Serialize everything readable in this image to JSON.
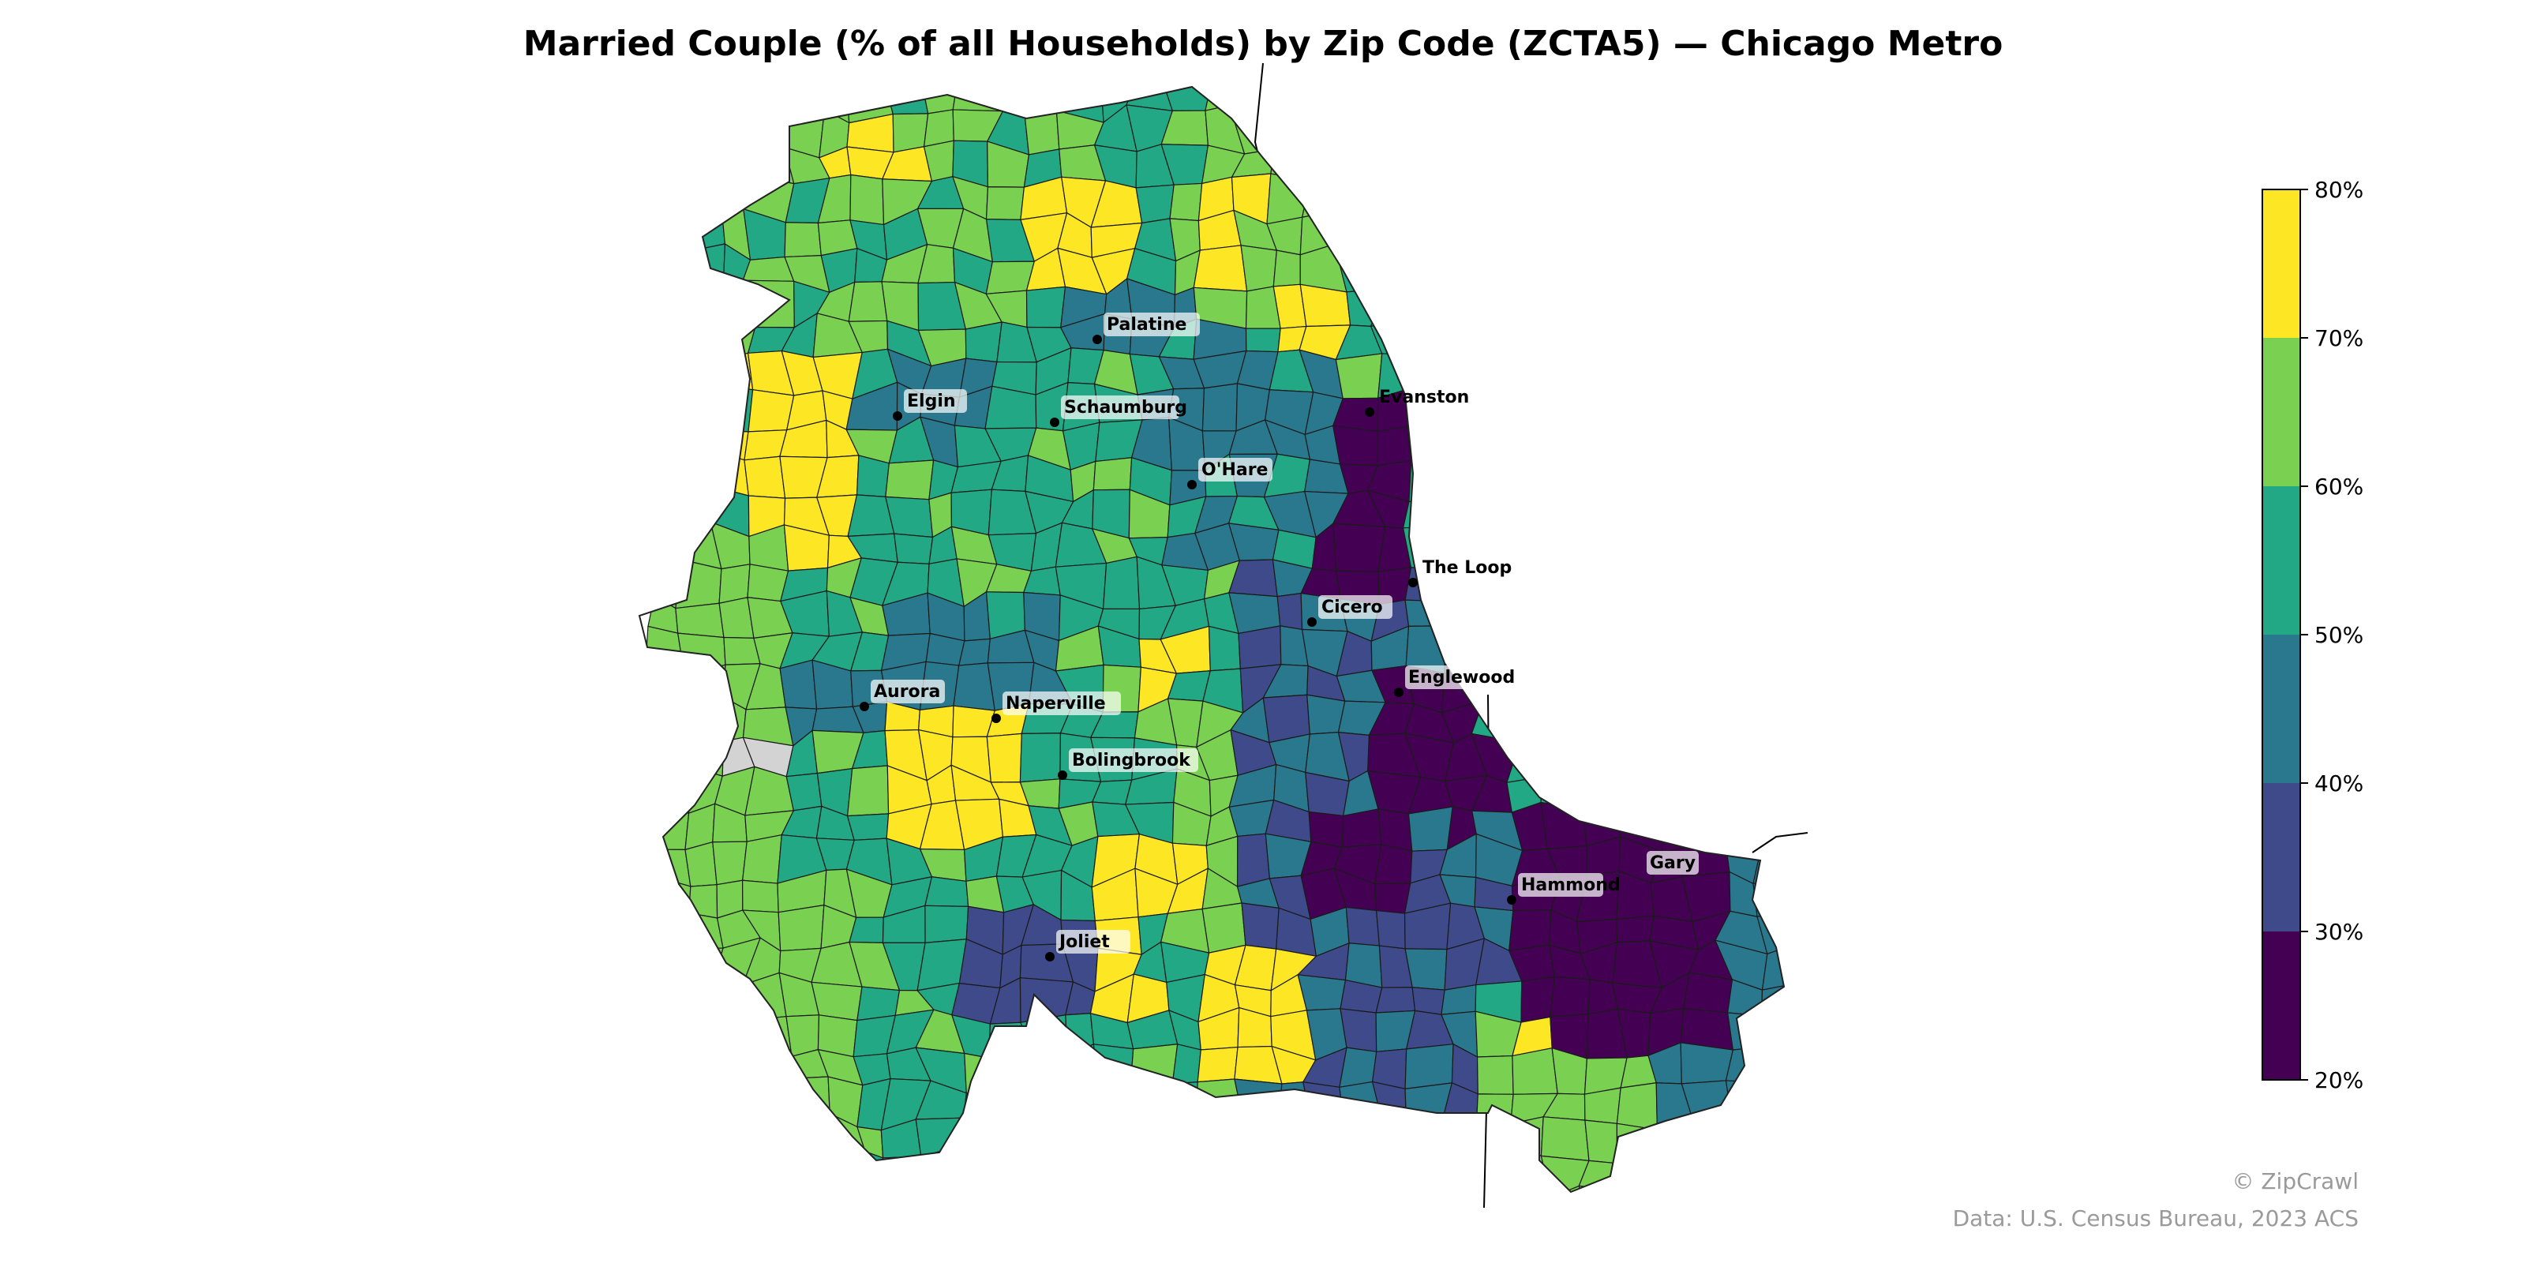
{
  "title": "Married Couple (% of all Households) by Zip Code (ZCTA5) — Chicago Metro",
  "colors": {
    "bin_20_30": "#440154",
    "bin_30_40": "#3e4a89",
    "bin_40_50": "#2a788e",
    "bin_50_60": "#22a884",
    "bin_60_70": "#7ad151",
    "bin_70_80": "#fde725",
    "no_data": "#d3d3d3"
  },
  "legend": {
    "ticks": [
      "20%",
      "30%",
      "40%",
      "50%",
      "60%",
      "70%",
      "80%"
    ]
  },
  "cities": [
    {
      "name": "Palatine"
    },
    {
      "name": "Evanston"
    },
    {
      "name": "Elgin"
    },
    {
      "name": "Schaumburg"
    },
    {
      "name": "O'Hare"
    },
    {
      "name": "The Loop"
    },
    {
      "name": "Cicero"
    },
    {
      "name": "Englewood"
    },
    {
      "name": "Aurora"
    },
    {
      "name": "Naperville"
    },
    {
      "name": "Bolingbrook"
    },
    {
      "name": "Hammond"
    },
    {
      "name": "Gary"
    },
    {
      "name": "Joliet"
    }
  ],
  "footer": {
    "copyright": "© ZipCrawl",
    "source": "Data: U.S. Census Bureau, 2023 ACS"
  }
}
